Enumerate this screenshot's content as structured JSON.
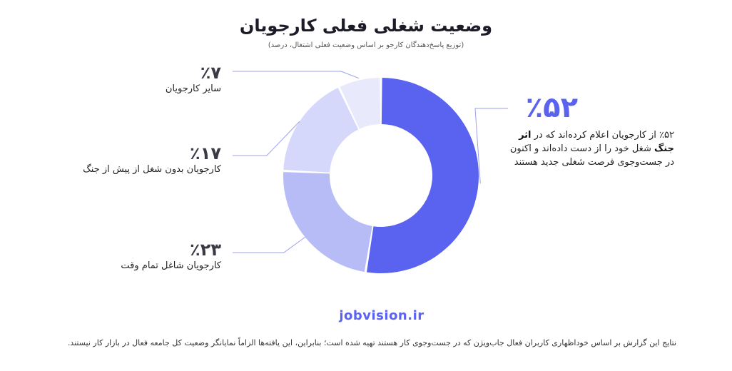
{
  "header": {
    "title": "وضعیت شغلی فعلی کارجویان",
    "subtitle": "(توزیع پاسخ‌دهندگان کارجو بر اساس وضعیت فعلی اشتغال، درصد)"
  },
  "callouts": {
    "lost_job": {
      "pct": "٪۵۲",
      "desc_pre": "٪۵۲ از کارجویان اعلام کرده‌اند که در",
      "desc_bold": "اثر جنگ",
      "desc_post": "شغل خود را از دست داده‌اند و اکنون در جست‌وجوی فرصت شغلی جدید هستند"
    },
    "employed_full_time": {
      "pct": "٪۲۳",
      "desc": "کارجویان شاغل تمام وقت"
    },
    "unemployed_before_war": {
      "pct": "٪۱۷",
      "desc": "کارجویان بدون شغل از پیش از جنگ"
    },
    "other": {
      "pct": "٪۷",
      "desc": "سایر کارجویان"
    }
  },
  "brand": "jobvision.ir",
  "footnote": "نتایج این گزارش بر اساس خوداظهاری کاربران فعال جاب‌ویژن که در جست‌وجوی کار هستند تهیه شده است؛ بنابراین، این یافته‌ها الزاماً نمایانگر وضعیت کل جامعه فعال در بازار کار نیستند.",
  "chart_data": {
    "type": "pie",
    "unit": "%",
    "slices": [
      {
        "key": "lost_job",
        "value": 52,
        "color": "#5a63f0"
      },
      {
        "key": "employed_full_time",
        "value": 23,
        "color": "#b7bcf6"
      },
      {
        "key": "unemployed_before_war",
        "value": 17,
        "color": "#d5d8fa"
      },
      {
        "key": "other",
        "value": 7,
        "color": "#e8eafc"
      }
    ],
    "leader_color": "#9aa0ee"
  }
}
